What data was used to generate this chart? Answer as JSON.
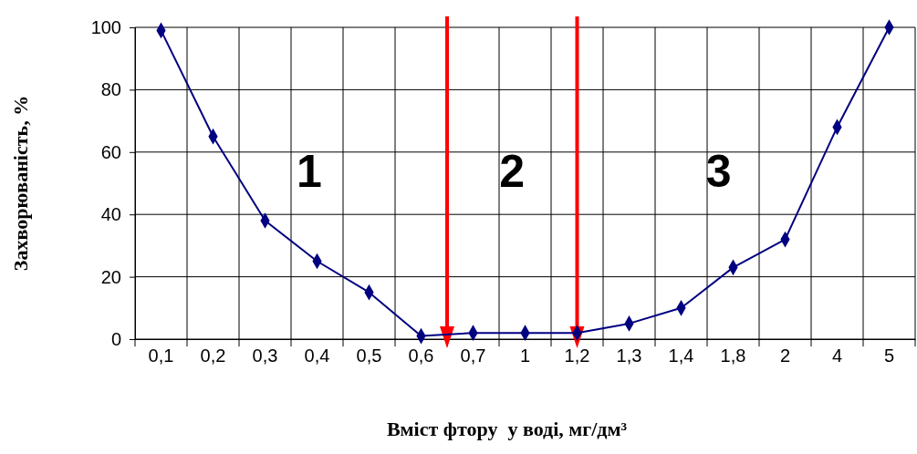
{
  "chart_data": {
    "type": "line",
    "xlabel": "Вміст фтору  у воді, мг/дм³",
    "ylabel": "Захворюваність, %",
    "categories": [
      "0,1",
      "0,2",
      "0,3",
      "0,4",
      "0,5",
      "0,6",
      "0,7",
      "1",
      "1,2",
      "1,3",
      "1,4",
      "1,8",
      "2",
      "4",
      "5"
    ],
    "series": [
      {
        "color": "#000080",
        "values": [
          99,
          65,
          38,
          25,
          15,
          1,
          2,
          2,
          2,
          5,
          10,
          23,
          32,
          68,
          100
        ]
      }
    ],
    "ylim": [
      0,
      100
    ],
    "yticks": [
      0,
      20,
      40,
      60,
      80,
      100
    ],
    "grid": true,
    "marker": "diamond",
    "line_style": "solid",
    "annotations": [
      "1",
      "2",
      "3"
    ]
  }
}
